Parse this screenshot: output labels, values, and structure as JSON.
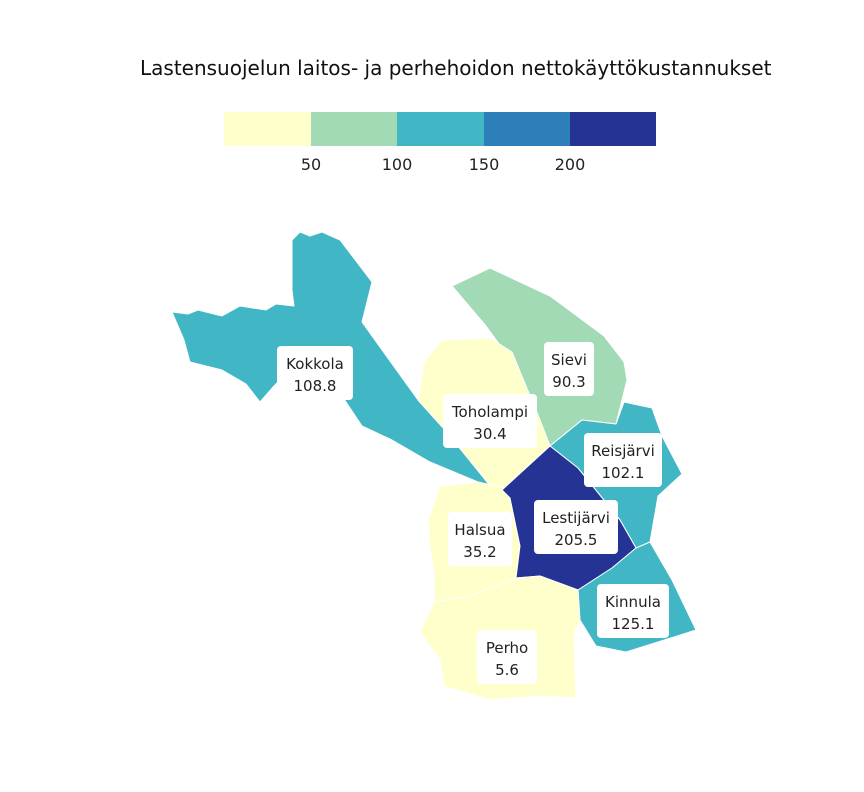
{
  "title": "Lastensuojelun laitos- ja perhehoidon nettokäyttökustannukset",
  "legend": {
    "ticks": [
      "50",
      "100",
      "150",
      "200"
    ],
    "bins": [
      "#ffffcc",
      "#a1dab4",
      "#41b6c4",
      "#2c7fb8",
      "#253494"
    ]
  },
  "chart_data": {
    "type": "choropleth",
    "title": "Lastensuojelun laitos- ja perhehoidon nettokäyttökustannukset",
    "breaks": [
      50,
      100,
      150,
      200
    ],
    "regions": [
      {
        "name": "Kokkola",
        "value": "108.8",
        "color": "#41b6c4"
      },
      {
        "name": "Sievi",
        "value": "90.3",
        "color": "#a1dab4"
      },
      {
        "name": "Toholampi",
        "value": "30.4",
        "color": "#ffffcc"
      },
      {
        "name": "Reisjärvi",
        "value": "102.1",
        "color": "#41b6c4"
      },
      {
        "name": "Halsua",
        "value": "35.2",
        "color": "#ffffcc"
      },
      {
        "name": "Lestijärvi",
        "value": "205.5",
        "color": "#253494"
      },
      {
        "name": "Kinnula",
        "value": "125.1",
        "color": "#41b6c4"
      },
      {
        "name": "Perho",
        "value": "5.6",
        "color": "#ffffcc"
      }
    ]
  }
}
